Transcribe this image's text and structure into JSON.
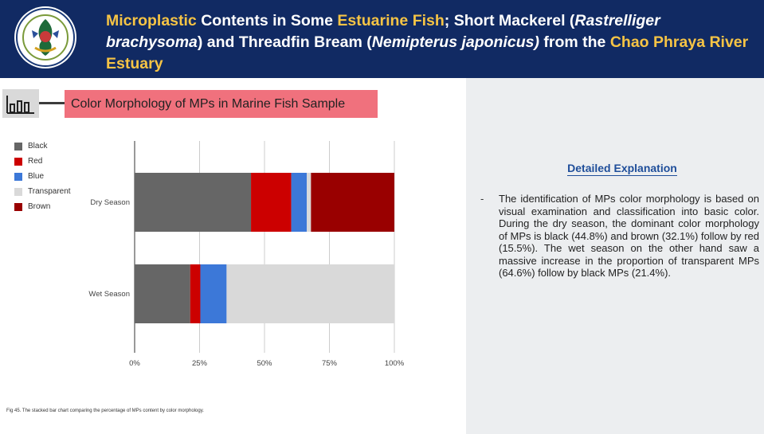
{
  "header": {
    "title_segments": [
      {
        "text": "Microplastic",
        "style": "hl"
      },
      {
        "text": " Contents in Some ",
        "style": "plain"
      },
      {
        "text": "Estuarine Fish",
        "style": "hl"
      },
      {
        "text": "; Short Mackerel (",
        "style": "plain"
      },
      {
        "text": "Rastrelliger brachysoma",
        "style": "it"
      },
      {
        "text": ") and Threadfin Bream (",
        "style": "plain"
      },
      {
        "text": "Nemipterus japonicus)",
        "style": "it"
      },
      {
        "text": " from the ",
        "style": "plain"
      },
      {
        "text": "Chao Phraya River Estuary",
        "style": "hl"
      }
    ],
    "colors": {
      "background": "#112a63",
      "highlight": "#f6c445"
    }
  },
  "section": {
    "label": "Color Morphology of MPs in Marine Fish Sample"
  },
  "chart_data": {
    "type": "bar",
    "orientation": "horizontal",
    "stacked": "percent",
    "categories": [
      "Dry Season",
      "Wet Season"
    ],
    "series": [
      {
        "name": "Black",
        "color": "#666666",
        "values": [
          44.8,
          21.4
        ]
      },
      {
        "name": "Red",
        "color": "#cc0000",
        "values": [
          15.5,
          3.9
        ]
      },
      {
        "name": "Blue",
        "color": "#3c78d8",
        "values": [
          6.0,
          10.1
        ]
      },
      {
        "name": "Transparent",
        "color": "#d9d9d9",
        "values": [
          1.6,
          64.6
        ]
      },
      {
        "name": "Brown",
        "color": "#990000",
        "values": [
          32.1,
          0
        ]
      }
    ],
    "xticks": [
      "0%",
      "25%",
      "50%",
      "75%",
      "100%"
    ],
    "xlim": [
      0,
      100
    ],
    "legend_position": "top-left",
    "grid": true
  },
  "caption": "Fig 45. The stacked bar chart comparing the percentage of MPs content by color morphology.",
  "explanation": {
    "title": "Detailed Explanation",
    "bullet": "-",
    "text": "The identification of MPs color morphology is based on visual examination and classification into basic color. During the dry season, the dominant color morphology of MPs is black (44.8%) and brown (32.1%) follow by red (15.5%). The wet season on the other hand saw a massive increase in the proportion of transparent MPs (64.6%) follow by black MPs (21.4%)."
  }
}
